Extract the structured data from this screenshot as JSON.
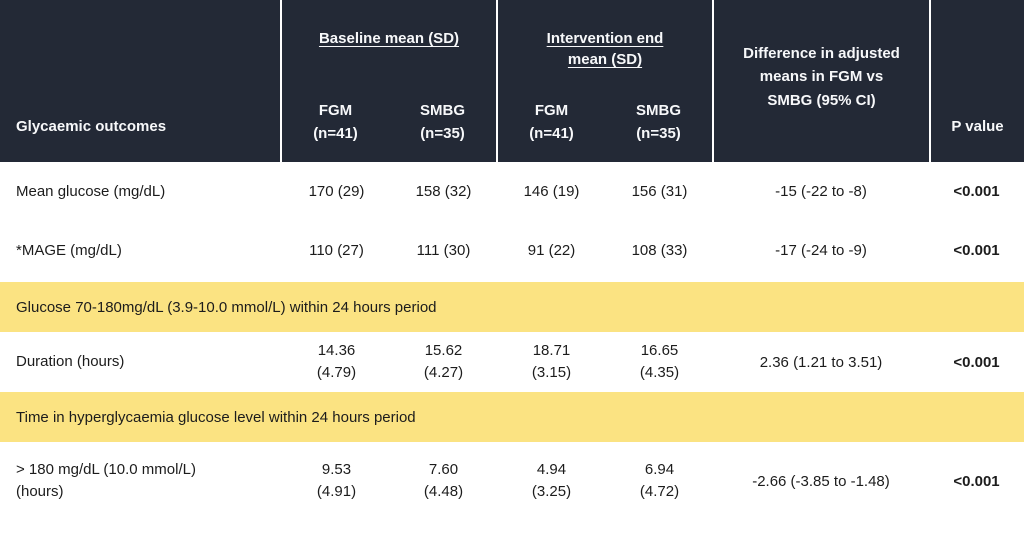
{
  "table": {
    "colors": {
      "header_bg": "#232936",
      "header_text": "#f7f8fa",
      "section_bg": "#fbe382",
      "body_text": "#1c1c1c"
    },
    "header": {
      "outcomes": "Glycaemic outcomes",
      "baseline": {
        "title": "Baseline mean (SD)",
        "fgm": "FGM\n(n=41)",
        "smbg": "SMBG\n(n=35)"
      },
      "intervention": {
        "title": "Intervention end\nmean (SD)",
        "fgm": "FGM\n(n=41)",
        "smbg": "SMBG\n(n=35)"
      },
      "difference": "Difference in adjusted\nmeans in FGM vs\nSMBG (95% CI)",
      "p_value": "P value"
    },
    "rows": [
      {
        "label": "Mean glucose (mg/dL)",
        "b_fgm": "170 (29)",
        "b_smbg": "158 (32)",
        "e_fgm": "146 (19)",
        "e_smbg": "156 (31)",
        "diff": "-15 (-22 to -8)",
        "p": "<0.001"
      },
      {
        "label": "*MAGE (mg/dL)",
        "b_fgm": "110 (27)",
        "b_smbg": "111 (30)",
        "e_fgm": "91 (22)",
        "e_smbg": "108 (33)",
        "diff": "-17 (-24 to -9)",
        "p": "<0.001"
      },
      {
        "label": "Duration (hours)",
        "b_fgm": "14.36\n(4.79)",
        "b_smbg": "15.62\n(4.27)",
        "e_fgm": "18.71\n(3.15)",
        "e_smbg": "16.65\n(4.35)",
        "diff": "2.36 (1.21 to 3.51)",
        "p": "<0.001"
      },
      {
        "label": "> 180 mg/dL (10.0 mmol/L)\n(hours)",
        "b_fgm": "9.53\n(4.91)",
        "b_smbg": "7.60\n(4.48)",
        "e_fgm": "4.94\n(3.25)",
        "e_smbg": "6.94\n(4.72)",
        "diff": "-2.66 (-3.85 to -1.48)",
        "p": "<0.001"
      }
    ],
    "sections": [
      {
        "label": "Glucose 70-180mg/dL (3.9-10.0 mmol/L) within 24 hours period"
      },
      {
        "label": "Time in hyperglycaemia glucose level within 24 hours period"
      }
    ]
  }
}
